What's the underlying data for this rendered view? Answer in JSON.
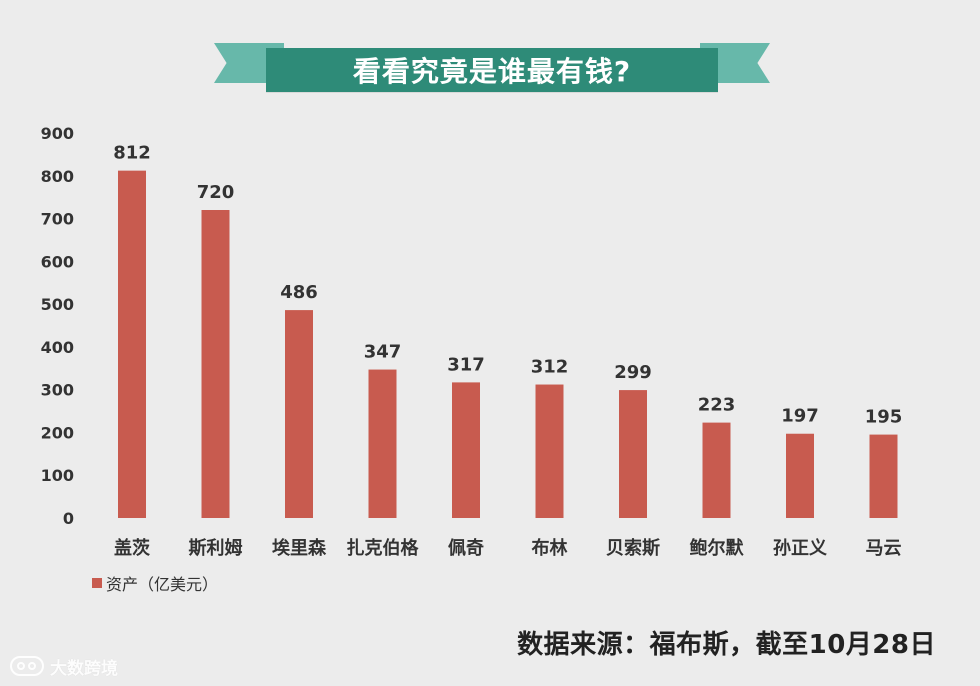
{
  "banner": {
    "title": "看看究竟是谁最有钱?"
  },
  "source_text": "数据来源：福布斯，截至10月28日",
  "watermark_text": "大数跨境",
  "chart_data": {
    "type": "bar",
    "categories": [
      "盖茨",
      "斯利姆",
      "埃里森",
      "扎克伯格",
      "佩奇",
      "布林",
      "贝索斯",
      "鲍尔默",
      "孙正义",
      "马云"
    ],
    "series": [
      {
        "name": "资产（亿美元）",
        "values": [
          812,
          720,
          486,
          347,
          317,
          312,
          299,
          223,
          197,
          195
        ]
      }
    ],
    "ylim": [
      0,
      900
    ],
    "yticks": [
      0,
      100,
      200,
      300,
      400,
      500,
      600,
      700,
      800,
      900
    ],
    "grid": false,
    "legend": "bottom-left",
    "colors": {
      "bar": "#c85b4f",
      "text": "#333333",
      "banner": "#2e8b78",
      "ribbon": "#67b8aa"
    }
  }
}
